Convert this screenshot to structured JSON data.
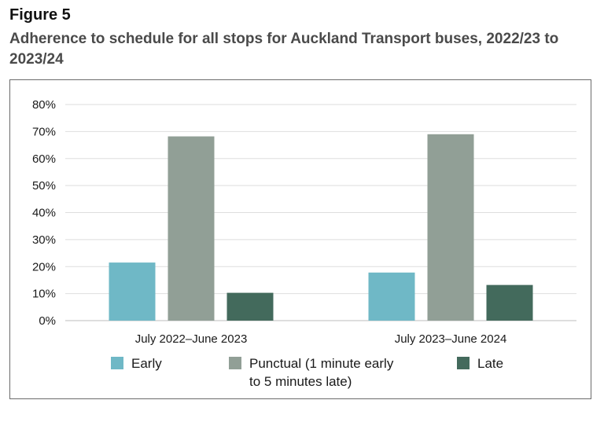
{
  "figure": {
    "label": "Figure 5",
    "title": "Adherence to schedule for all stops for Auckland Transport buses, 2022/23 to 2023/24"
  },
  "chart_data": {
    "type": "bar",
    "title": "Adherence to schedule for all stops for Auckland Transport buses, 2022/23 to 2023/24",
    "categories": [
      "July 2022–June 2023",
      "July 2023–June 2024"
    ],
    "series": [
      {
        "name": "Early",
        "legend_lines": [
          "Early"
        ],
        "color": "#6fb8c6",
        "values": [
          21.5,
          17.8
        ]
      },
      {
        "name": "Punctual (1 minute early to 5 minutes late)",
        "legend_lines": [
          "Punctual (1 minute early",
          "to 5 minutes late)"
        ],
        "color": "#919f96",
        "values": [
          68.2,
          69.0
        ]
      },
      {
        "name": "Late",
        "legend_lines": [
          "Late"
        ],
        "color": "#436a5c",
        "values": [
          10.3,
          13.2
        ]
      }
    ],
    "y_ticks": [
      "0%",
      "10%",
      "20%",
      "30%",
      "40%",
      "50%",
      "60%",
      "70%",
      "80%"
    ],
    "ylim": [
      0,
      80
    ],
    "xlabel": "",
    "ylabel": "",
    "grid": true,
    "legend_position": "bottom"
  }
}
